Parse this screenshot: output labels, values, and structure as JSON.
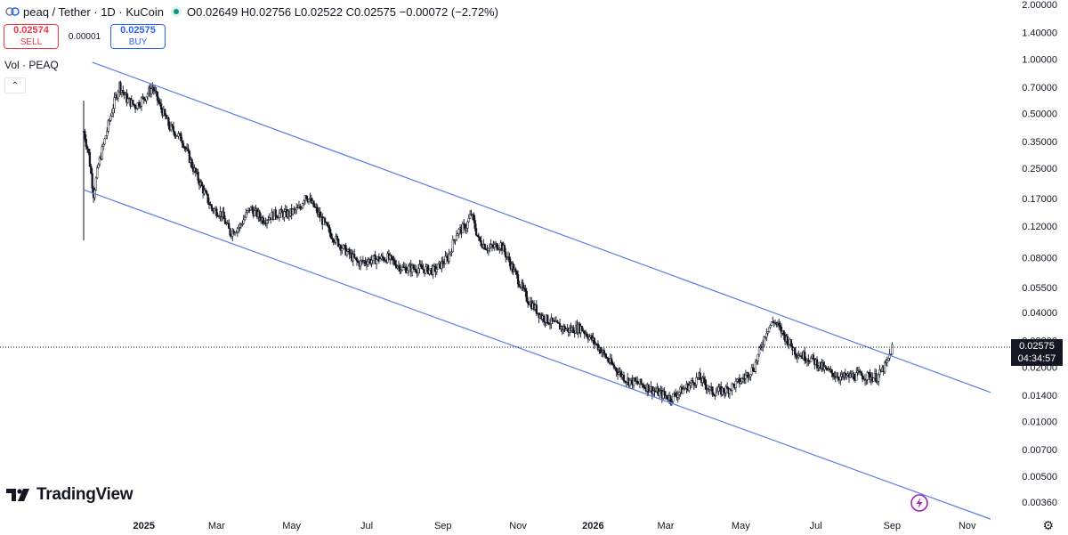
{
  "header": {
    "title": "peaq / Tether · 1D · KuCoin",
    "open": "O0.02649",
    "high": "H0.02756",
    "low": "L0.02522",
    "close": "C0.02575",
    "change": "−0.00072 (−2.72%)"
  },
  "trade": {
    "sell_price": "0.02574",
    "sell_label": "SELL",
    "spread": "0.00001",
    "buy_price": "0.02575",
    "buy_label": "BUY"
  },
  "volume_label": "Vol · PEAQ",
  "price_tag": {
    "price": "0.02575",
    "countdown": "04:34:57"
  },
  "logo_text": "TradingView",
  "colors": {
    "channel": "#5b7ce6",
    "candles": "#131722",
    "sell": "#f23645",
    "buy": "#2962ff"
  },
  "chart_data": {
    "type": "candlestick",
    "y_scale": "log",
    "y_ticks": [
      "2.00000",
      "1.40000",
      "1.00000",
      "0.70000",
      "0.50000",
      "0.35000",
      "0.25000",
      "0.17000",
      "0.12000",
      "0.08000",
      "0.05500",
      "0.04000",
      "0.02800",
      "0.02000",
      "0.01400",
      "0.01000",
      "0.00700",
      "0.00500",
      "0.00360"
    ],
    "x_ticks": [
      "2025",
      "Mar",
      "May",
      "Jul",
      "Sep",
      "Nov",
      "2026",
      "Mar",
      "May",
      "Jul",
      "Sep",
      "Nov"
    ],
    "x_range": [
      "2024-11-13",
      "2026-11-20"
    ],
    "last_price": 0.02575,
    "price_path": [
      [
        "2024-11-13",
        0.4
      ],
      [
        "2024-11-17",
        0.3
      ],
      [
        "2024-11-21",
        0.18
      ],
      [
        "2024-11-25",
        0.26
      ],
      [
        "2024-12-01",
        0.38
      ],
      [
        "2024-12-06",
        0.52
      ],
      [
        "2024-12-12",
        0.72
      ],
      [
        "2024-12-18",
        0.6
      ],
      [
        "2024-12-25",
        0.55
      ],
      [
        "2025-01-02",
        0.62
      ],
      [
        "2025-01-08",
        0.7
      ],
      [
        "2025-01-14",
        0.55
      ],
      [
        "2025-01-22",
        0.42
      ],
      [
        "2025-02-01",
        0.36
      ],
      [
        "2025-02-10",
        0.25
      ],
      [
        "2025-02-18",
        0.19
      ],
      [
        "2025-02-25",
        0.15
      ],
      [
        "2025-03-05",
        0.14
      ],
      [
        "2025-03-12",
        0.11
      ],
      [
        "2025-03-20",
        0.12
      ],
      [
        "2025-03-28",
        0.15
      ],
      [
        "2025-04-08",
        0.13
      ],
      [
        "2025-04-18",
        0.14
      ],
      [
        "2025-04-28",
        0.14
      ],
      [
        "2025-05-08",
        0.15
      ],
      [
        "2025-05-12",
        0.18
      ],
      [
        "2025-05-20",
        0.15
      ],
      [
        "2025-06-01",
        0.11
      ],
      [
        "2025-06-12",
        0.09
      ],
      [
        "2025-06-24",
        0.075
      ],
      [
        "2025-07-05",
        0.078
      ],
      [
        "2025-07-18",
        0.08
      ],
      [
        "2025-07-30",
        0.07
      ],
      [
        "2025-08-12",
        0.07
      ],
      [
        "2025-08-25",
        0.068
      ],
      [
        "2025-09-05",
        0.08
      ],
      [
        "2025-09-12",
        0.11
      ],
      [
        "2025-09-20",
        0.12
      ],
      [
        "2025-09-24",
        0.14
      ],
      [
        "2025-09-30",
        0.1
      ],
      [
        "2025-10-08",
        0.09
      ],
      [
        "2025-10-18",
        0.095
      ],
      [
        "2025-10-30",
        0.065
      ],
      [
        "2025-11-08",
        0.048
      ],
      [
        "2025-11-20",
        0.038
      ],
      [
        "2025-12-02",
        0.034
      ],
      [
        "2025-12-12",
        0.032
      ],
      [
        "2025-12-22",
        0.033
      ],
      [
        "2026-01-05",
        0.026
      ],
      [
        "2026-01-15",
        0.021
      ],
      [
        "2026-01-28",
        0.017
      ],
      [
        "2026-02-10",
        0.016
      ],
      [
        "2026-02-22",
        0.0145
      ],
      [
        "2026-03-05",
        0.0135
      ],
      [
        "2026-03-18",
        0.0155
      ],
      [
        "2026-03-28",
        0.0175
      ],
      [
        "2026-04-08",
        0.0145
      ],
      [
        "2026-04-20",
        0.015
      ],
      [
        "2026-05-02",
        0.017
      ],
      [
        "2026-05-12",
        0.02
      ],
      [
        "2026-05-22",
        0.032
      ],
      [
        "2026-05-28",
        0.036
      ],
      [
        "2026-06-05",
        0.03
      ],
      [
        "2026-06-15",
        0.024
      ],
      [
        "2026-06-28",
        0.022
      ],
      [
        "2026-07-10",
        0.019
      ],
      [
        "2026-07-22",
        0.0175
      ],
      [
        "2026-08-05",
        0.018
      ],
      [
        "2026-08-20",
        0.0175
      ],
      [
        "2026-08-28",
        0.021
      ],
      [
        "2026-09-01",
        0.02575
      ]
    ],
    "channel": {
      "upper": [
        [
          "2024-11-20",
          0.96
        ],
        [
          "2026-11-20",
          0.0145
        ]
      ],
      "lower": [
        [
          "2024-11-13",
          0.19
        ],
        [
          "2026-11-20",
          0.0029
        ]
      ]
    }
  }
}
